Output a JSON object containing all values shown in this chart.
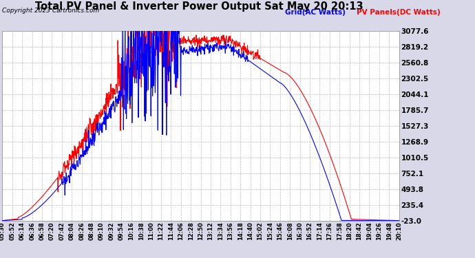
{
  "title": "Total PV Panel & Inverter Power Output Sat May 20 20:13",
  "copyright": "Copyright 2023 Cartronics.com",
  "legend_grid": "Grid(AC Watts)",
  "legend_pv": "PV Panels(DC Watts)",
  "grid_color": "blue",
  "pv_color": "red",
  "background_color": "#d8d8e8",
  "plot_bg_color": "#ffffff",
  "yticks": [
    3077.6,
    2819.2,
    2560.8,
    2302.5,
    2044.1,
    1785.7,
    1527.3,
    1268.9,
    1010.5,
    752.1,
    493.8,
    235.4,
    -23.0
  ],
  "ymin": -23.0,
  "ymax": 3077.6,
  "xtick_labels": [
    "05:30",
    "05:52",
    "06:14",
    "06:36",
    "06:58",
    "07:20",
    "07:42",
    "08:04",
    "08:26",
    "08:48",
    "09:10",
    "09:32",
    "09:54",
    "10:16",
    "10:38",
    "11:00",
    "11:22",
    "11:44",
    "12:06",
    "12:28",
    "12:50",
    "13:12",
    "13:34",
    "13:56",
    "14:18",
    "14:40",
    "15:02",
    "15:24",
    "15:46",
    "16:08",
    "16:30",
    "16:52",
    "17:14",
    "17:36",
    "17:58",
    "18:20",
    "18:42",
    "19:04",
    "19:26",
    "19:48",
    "20:10"
  ],
  "line_width": 0.8,
  "title_fontsize": 10.5,
  "copyright_fontsize": 6.5,
  "legend_fontsize": 7.5,
  "ytick_fontsize": 7.5,
  "xtick_fontsize": 6.0
}
